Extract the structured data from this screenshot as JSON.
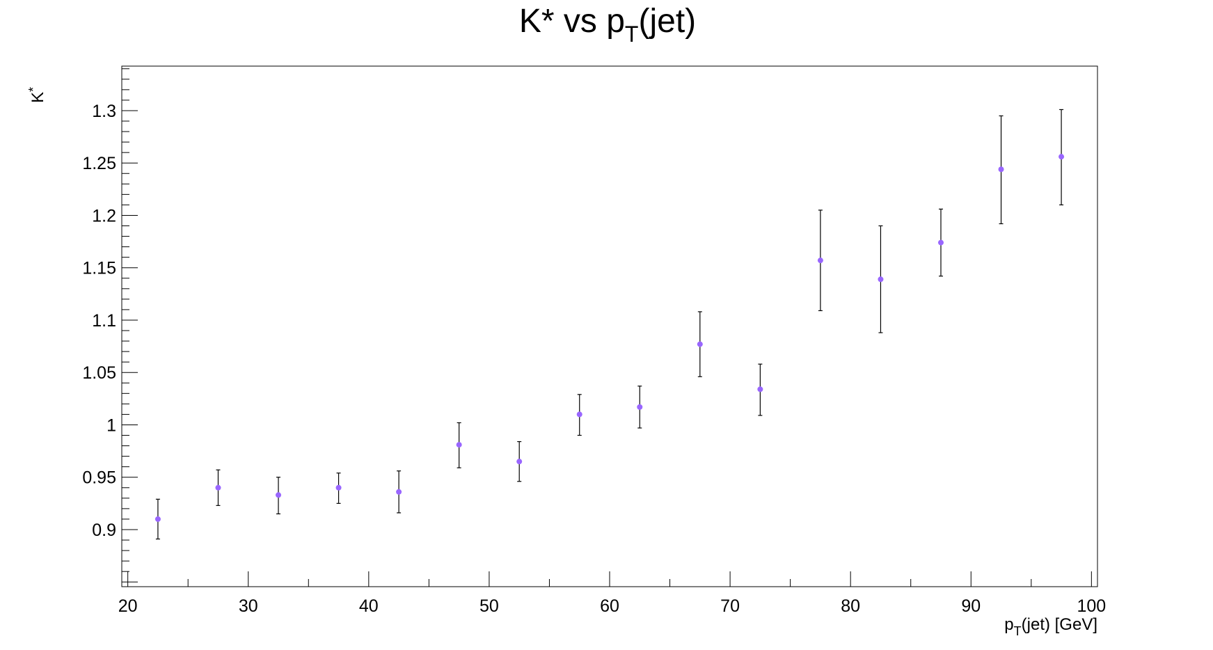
{
  "chart_data": {
    "type": "scatter",
    "title": {
      "main": "K* vs p",
      "sub": "T",
      "tail": "(jet)"
    },
    "xlabel": {
      "main": "p",
      "sub": "T",
      "tail": "(jet) [GeV]"
    },
    "ylabel": {
      "main": "K",
      "sup": "*"
    },
    "xlim": [
      19.5,
      100.5
    ],
    "ylim": [
      0.8455,
      1.3425
    ],
    "x_ticks": [
      20,
      30,
      40,
      50,
      60,
      70,
      80,
      90,
      100
    ],
    "x_tick_labels": [
      "20",
      "30",
      "40",
      "50",
      "60",
      "70",
      "80",
      "90",
      "100"
    ],
    "y_ticks": [
      0.9,
      0.95,
      1.0,
      1.05,
      1.1,
      1.15,
      1.2,
      1.25,
      1.3
    ],
    "y_tick_labels": [
      "0.9",
      "0.95",
      "1",
      "1.05",
      "1.1",
      "1.15",
      "1.2",
      "1.25",
      "1.3"
    ],
    "grid": false,
    "legend": "none",
    "marker_color": "#9966ff",
    "error_bar_color": "#000000",
    "series": [
      {
        "x": [
          22.5,
          27.5,
          32.5,
          37.5,
          42.5,
          47.5,
          52.5,
          57.5,
          62.5,
          67.5,
          72.5,
          77.5,
          82.5,
          87.5,
          92.5,
          97.5
        ],
        "y": [
          0.91,
          0.94,
          0.933,
          0.94,
          0.936,
          0.981,
          0.965,
          1.01,
          1.017,
          1.077,
          1.034,
          1.157,
          1.139,
          1.174,
          1.244,
          1.256
        ],
        "yerr_low": [
          0.019,
          0.017,
          0.018,
          0.015,
          0.02,
          0.022,
          0.019,
          0.02,
          0.02,
          0.031,
          0.025,
          0.048,
          0.051,
          0.032,
          0.052,
          0.046
        ],
        "yerr_high": [
          0.019,
          0.017,
          0.017,
          0.014,
          0.02,
          0.021,
          0.019,
          0.019,
          0.02,
          0.031,
          0.024,
          0.048,
          0.051,
          0.032,
          0.051,
          0.045
        ]
      }
    ]
  }
}
